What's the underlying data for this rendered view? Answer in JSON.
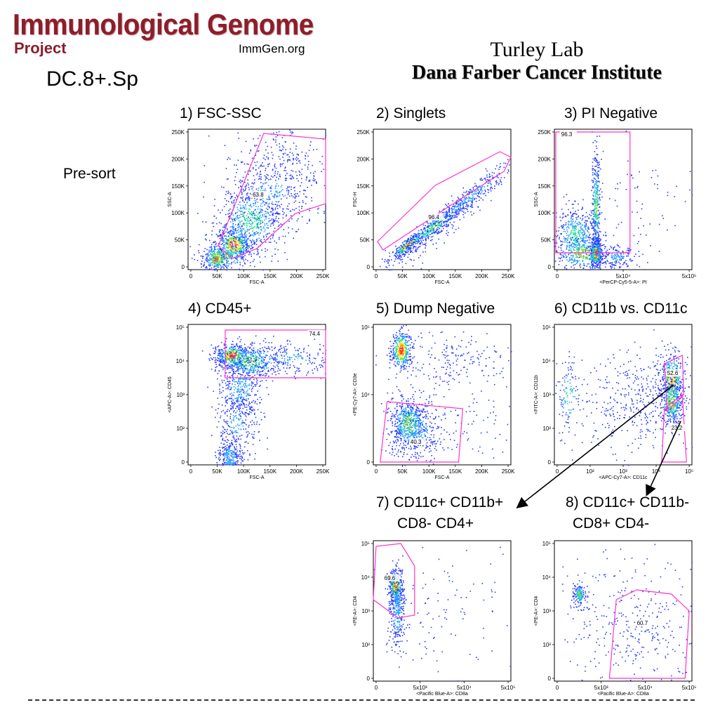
{
  "header": {
    "logo_title": "Immunological Genome",
    "logo_sub": "Project",
    "logo_url": "ImmGen.org",
    "sample_name": "DC.8+.Sp",
    "lab_name": "Turley Lab",
    "institute": "Dana Farber Cancer Institute",
    "row_label": "Pre-sort"
  },
  "colors": {
    "logo": "#8a1f2b",
    "gate": "#ff33cc",
    "arrow": "#000000"
  },
  "plots": [
    {
      "id": "p1",
      "title": "1) FSC-SSC",
      "gate_value": "63.8",
      "xlabel": "FSC-A",
      "ylabel": "SSC-A",
      "xticks": [
        "0",
        "50K",
        "100K",
        "150K",
        "200K",
        "250K"
      ],
      "yticks": [
        "0",
        "50K",
        "100K",
        "150K",
        "200K",
        "250K"
      ]
    },
    {
      "id": "p2",
      "title": "2) Singlets",
      "gate_value": "96.4",
      "xlabel": "FSC-A",
      "ylabel": "FSC-H",
      "xticks": [
        "0",
        "50K",
        "100K",
        "150K",
        "200K",
        "250K"
      ],
      "yticks": [
        "0",
        "50K",
        "100K",
        "150K",
        "200K",
        "250K"
      ]
    },
    {
      "id": "p3",
      "title": "3) PI Negative",
      "gate_value": "96.3",
      "xlabel": "<PerCP-Cy5-5-A>: PI",
      "ylabel": "SSC-A",
      "xticks": [
        "0",
        "5x10⁴",
        "5x10⁵"
      ],
      "yticks": [
        "0",
        "50K",
        "100K",
        "150K",
        "200K",
        "250K"
      ]
    },
    {
      "id": "p4",
      "title": "4) CD45+",
      "gate_value": "74.4",
      "xlabel": "FSC-A",
      "ylabel": "<APC-A>: CD45",
      "xticks": [
        "0",
        "50K",
        "100K",
        "150K",
        "200K",
        "250K"
      ],
      "yticks": [
        "0",
        "10²",
        "10³",
        "10⁴",
        "10⁵"
      ]
    },
    {
      "id": "p5",
      "title": "5) Dump Negative",
      "gate_value": "40.3",
      "xlabel": "FSC-A",
      "ylabel": "<PE-Cy7-A>: CD3e",
      "xticks": [
        "0",
        "50K",
        "100K",
        "150K",
        "200K",
        "250K"
      ],
      "yticks": [
        "0",
        "10⁴",
        "10⁵"
      ]
    },
    {
      "id": "p6",
      "title": "6) CD11b vs. CD11c",
      "gate_value": "52.6",
      "gate_value_2": "23.2",
      "xlabel": "<APC-Cy7-A>: CD11c",
      "ylabel": "<FITC-A>: CD11b",
      "xticks": [
        "0",
        "10²",
        "10³",
        "10⁴",
        "10⁵"
      ],
      "yticks": [
        "0",
        "10²",
        "10³",
        "10⁴",
        "10⁵"
      ]
    },
    {
      "id": "p7",
      "title": "7) CD11c+ CD11b+",
      "title2": "CD8- CD4+",
      "gate_value": "69.6",
      "xlabel": "<Pacific Blue-A>: CD8a",
      "ylabel": "<PE-A>: CD4",
      "xticks": [
        "0",
        "5x10³",
        "5x10⁴",
        "5x10⁵"
      ],
      "yticks": [
        "0",
        "10²",
        "10³",
        "10⁴",
        "10⁵"
      ]
    },
    {
      "id": "p8",
      "title": "8) CD11c+ CD11b-",
      "title2": "CD8+ CD4-",
      "gate_value": "60.7",
      "xlabel": "<Pacific Blue-A>: CD8a",
      "ylabel": "<PE-A>: CD4",
      "xticks": [
        "0",
        "5x10³",
        "5x10⁴",
        "5x10⁵"
      ],
      "yticks": [
        "0",
        "10²",
        "10³",
        "10⁴",
        "10⁵"
      ]
    }
  ]
}
